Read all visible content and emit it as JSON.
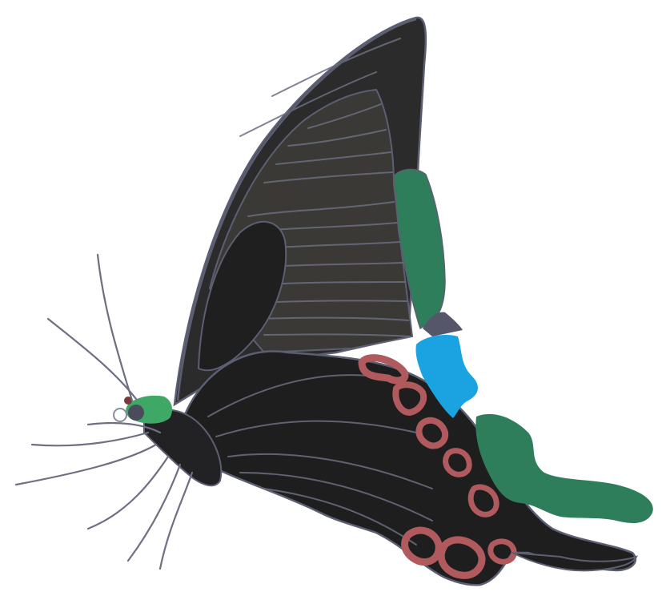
{
  "illustration": {
    "subject": "swallowtail-butterfly",
    "palette": {
      "background": "#ffffff",
      "forewing": "#2b2b2c",
      "forewing_inner": "#3a3935",
      "hindwing": "#1e1e1f",
      "outline": "#5c5f72",
      "green_band": "#2e7d5b",
      "blue_patch": "#1aa3e0",
      "red_spots": "#b05a5e",
      "head_green": "#3fa866"
    }
  }
}
